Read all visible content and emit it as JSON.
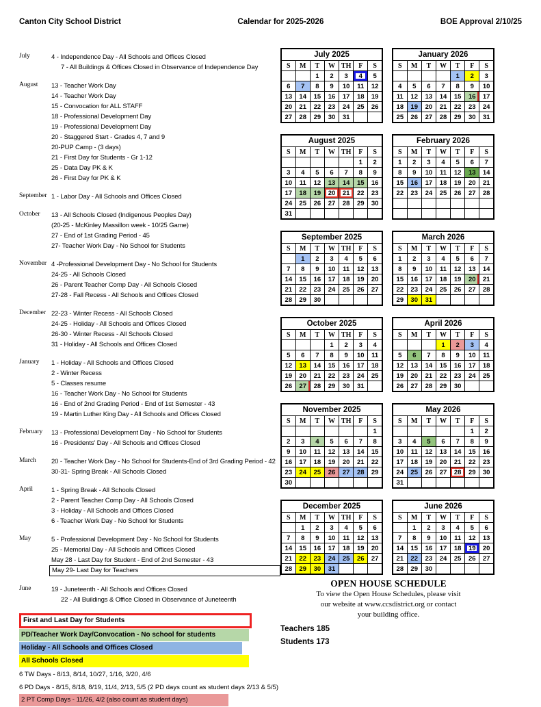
{
  "header": {
    "left": "Canton City School District",
    "center": "Calendar for 2025-2026",
    "right": "BOE Approval 2/10/25"
  },
  "events": [
    {
      "month": "July",
      "items": [
        {
          "text": "4 - Independence Day - All Schools and Offices Closed"
        },
        {
          "text": "7 - All Buildings & Offices Closed in Observance of Independence Day",
          "indent": true
        }
      ]
    },
    {
      "month": "August",
      "items": [
        "13 - Teacher Work Day",
        "14 - Teacher Work Day",
        "15 - Convocation for ALL STAFF",
        "18 - Professional Development Day",
        "19 - Professional Development Day",
        "20 - Staggered Start - Grades 4, 7 and 9",
        "20-PUP Camp - (3 days)",
        "21 - First Day for Students - Gr 1-12",
        "25 - Data Day PK & K",
        "26 - First Day for PK & K"
      ]
    },
    {
      "month": "September",
      "items": [
        "1 - Labor Day - All Schools and Offices Closed"
      ]
    },
    {
      "month": "October",
      "items": [
        "13 - All Schools Closed (Indigenous Peoples Day)",
        "(20-25 - McKinley Massillon week - 10/25 Game)",
        "27 -  End of 1st Grading Period  - 45",
        "27- Teacher Work Day - No School for Students"
      ]
    },
    {
      "month": "November",
      "items": [
        "4 -Professional Development Day - No School for Students",
        "24-25 - All Schools Closed",
        "26 - Parent Teacher Comp Day - All Schools Closed",
        "27-28 - Fall Recess - All Schools and Offices Closed"
      ]
    },
    {
      "month": "December",
      "items": [
        "22-23 - Winter Recess - All Schools Closed",
        "24-25 - Holiday - All Schools and Offices Closed",
        "26-30 - Winter Recess - All Schools Closed",
        "31 - Holiday - All Schools and Offices Closed"
      ]
    },
    {
      "month": "January",
      "items": [
        "1 - Holiday - All Schools and Offices Closed",
        "2 - Winter Recess",
        "5 - Classes resume",
        "16 - Teacher Work Day - No School for Students",
        "16 - End of 2nd Grading Period - End of 1st Semester  - 43",
        "19 - Martin Luther King Day - All Schools and Offices Closed"
      ]
    },
    {
      "month": "February",
      "items": [
        "13 - Professional Development Day - No School for Students",
        "16 - Presidents' Day - All Schools and Offices Closed"
      ]
    },
    {
      "month": "March",
      "items": [
        "20 - Teacher Work Day - No School for Students-End of 3rd Grading Period - 42",
        "30-31- Spring Break - All Schools Closed"
      ]
    },
    {
      "month": "April",
      "items": [
        "1 - Spring Break - All Schools Closed",
        "2 - Parent Teacher Comp Day - All Schools Closed",
        "3 - Holiday - All Schools and Offices Closed",
        "6 - Teacher Work Day - No School for Students"
      ]
    },
    {
      "month": "May",
      "items": [
        "5 - Professional Development Day - No School for Students",
        "25 - Memorial Day - All Schools and Offices Closed",
        "May  28 - Last Day for Student - End of 2nd Semester - 43",
        {
          "text": "May 29- Last Day for Teachers",
          "boxed": true
        }
      ]
    },
    {
      "month": "June",
      "items": [
        "19 - Juneteenth - All Schools and Offices Closed",
        {
          "text": "22 - All Buildings & Office Closed in Observance of Juneteenth",
          "indent": true
        }
      ]
    }
  ],
  "legend": [
    {
      "text": "First and Last Day for Students",
      "style": "lg-red-box"
    },
    {
      "text": "PD/Teacher Work Day/Convocation - No school for students",
      "style": "lg-green"
    },
    {
      "text": "Holiday - All Schools and Offices Closed",
      "style": "lg-blue"
    },
    {
      "text": "All Schools Closed",
      "style": "lg-yellow"
    },
    {
      "text": "6 TW Days - 8/13, 8/14, 10/27, 1/16, 3/20, 4/6",
      "style": "lg-plain"
    },
    {
      "text": "6 PD Days - 8/15, 8/18, 8/19, 11/4,  2/13, 5/5 (2 PD days count as student days 2/13 & 5/5)",
      "style": "lg-plain"
    },
    {
      "text": "2 PT Comp Days - 11/26, 4/2 (also count as student days)",
      "style": "lg-pink"
    }
  ],
  "calendars": [
    {
      "title": "July 2025",
      "dow": [
        "S",
        "M",
        "T",
        "W",
        "TH",
        "F",
        "S"
      ],
      "weeks": [
        [
          "",
          "",
          "1",
          "2",
          "3",
          "4",
          "5"
        ],
        [
          "6",
          "7",
          "8",
          "9",
          "10",
          "11",
          "12"
        ],
        [
          "13",
          "14",
          "15",
          "16",
          "17",
          "18",
          "19"
        ],
        [
          "20",
          "21",
          "22",
          "23",
          "24",
          "25",
          "26"
        ],
        [
          "27",
          "28",
          "29",
          "30",
          "31",
          "",
          ""
        ]
      ],
      "hl": {
        "4": "blue-box",
        "7": "blue"
      }
    },
    {
      "title": "January 2026",
      "dow": [
        "S",
        "M",
        "T",
        "W",
        "T",
        "F",
        "S"
      ],
      "weeks": [
        [
          "",
          "",
          "",
          "",
          "1",
          "2",
          "3"
        ],
        [
          "4",
          "5",
          "6",
          "7",
          "8",
          "9",
          "10"
        ],
        [
          "11",
          "12",
          "13",
          "14",
          "15",
          "16",
          "17"
        ],
        [
          "18",
          "19",
          "20",
          "21",
          "22",
          "23",
          "24"
        ],
        [
          "25",
          "26",
          "27",
          "28",
          "29",
          "30",
          "31"
        ]
      ],
      "hl": {
        "1": "blue",
        "2": "yellow",
        "16": "green-grading",
        "19": "blue"
      }
    },
    {
      "title": "August 2025",
      "dow": [
        "S",
        "M",
        "T",
        "W",
        "TH",
        "F",
        "S"
      ],
      "weeks": [
        [
          "",
          "",
          "",
          "",
          "",
          "1",
          "2"
        ],
        [
          "3",
          "4",
          "5",
          "6",
          "7",
          "8",
          "9"
        ],
        [
          "10",
          "11",
          "12",
          "13",
          "14",
          "15",
          "16"
        ],
        [
          "17",
          "18",
          "19",
          "20",
          "21",
          "22",
          "23"
        ],
        [
          "24",
          "25",
          "26",
          "27",
          "28",
          "29",
          "30"
        ],
        [
          "31",
          "",
          "",
          "",
          "",
          "",
          ""
        ]
      ],
      "hl": {
        "13": "green-light",
        "14": "green-light",
        "15": "green-light",
        "18": "green-light",
        "19": "green-light",
        "20": "red-box",
        "21": "red-box"
      }
    },
    {
      "title": "February 2026",
      "dow": [
        "S",
        "M",
        "T",
        "W",
        "T",
        "F",
        "S"
      ],
      "weeks": [
        [
          "1",
          "2",
          "3",
          "4",
          "5",
          "6",
          "7"
        ],
        [
          "8",
          "9",
          "10",
          "11",
          "12",
          "13",
          "14"
        ],
        [
          "15",
          "16",
          "17",
          "18",
          "19",
          "20",
          "21"
        ],
        [
          "22",
          "23",
          "24",
          "25",
          "26",
          "27",
          "28"
        ],
        [
          "",
          "",
          "",
          "",
          "",
          "",
          ""
        ],
        [
          "",
          "",
          "",
          "",
          "",
          "",
          ""
        ]
      ],
      "hl": {
        "13": "green-dark",
        "16": "blue"
      }
    },
    {
      "title": "September 2025",
      "dow": [
        "S",
        "M",
        "T",
        "W",
        "TH",
        "F",
        "S"
      ],
      "weeks": [
        [
          "",
          "1",
          "2",
          "3",
          "4",
          "5",
          "6"
        ],
        [
          "7",
          "8",
          "9",
          "10",
          "11",
          "12",
          "13"
        ],
        [
          "14",
          "15",
          "16",
          "17",
          "18",
          "19",
          "20"
        ],
        [
          "21",
          "22",
          "23",
          "24",
          "25",
          "26",
          "27"
        ],
        [
          "28",
          "29",
          "30",
          "",
          "",
          "",
          ""
        ]
      ],
      "hl": {
        "1": "blue"
      }
    },
    {
      "title": "March 2026",
      "dow": [
        "S",
        "M",
        "T",
        "W",
        "T",
        "F",
        "S"
      ],
      "weeks": [
        [
          "1",
          "2",
          "3",
          "4",
          "5",
          "6",
          "7"
        ],
        [
          "8",
          "9",
          "10",
          "11",
          "12",
          "13",
          "14"
        ],
        [
          "15",
          "16",
          "17",
          "18",
          "19",
          "20",
          "21"
        ],
        [
          "22",
          "23",
          "24",
          "25",
          "26",
          "27",
          "28"
        ],
        [
          "29",
          "30",
          "31",
          "",
          "",
          "",
          ""
        ]
      ],
      "hl": {
        "20": "green-grading",
        "30": "yellow",
        "31": "yellow"
      }
    },
    {
      "title": "October 2025",
      "dow": [
        "S",
        "M",
        "T",
        "W",
        "TH",
        "F",
        "S"
      ],
      "weeks": [
        [
          "",
          "",
          "",
          "1",
          "2",
          "3",
          "4"
        ],
        [
          "5",
          "6",
          "7",
          "8",
          "9",
          "10",
          "11"
        ],
        [
          "12",
          "13",
          "14",
          "15",
          "16",
          "17",
          "18"
        ],
        [
          "19",
          "20",
          "21",
          "22",
          "23",
          "24",
          "25"
        ],
        [
          "26",
          "27",
          "28",
          "29",
          "30",
          "31",
          ""
        ]
      ],
      "hl": {
        "13": "yellow",
        "27": "green-grading"
      }
    },
    {
      "title": "April 2026",
      "dow": [
        "S",
        "M",
        "T",
        "W",
        "T",
        "F",
        "S"
      ],
      "weeks": [
        [
          "",
          "",
          "",
          "1",
          "2",
          "3",
          "4"
        ],
        [
          "5",
          "6",
          "7",
          "8",
          "9",
          "10",
          "11"
        ],
        [
          "12",
          "13",
          "14",
          "15",
          "16",
          "17",
          "18"
        ],
        [
          "19",
          "20",
          "21",
          "22",
          "23",
          "24",
          "25"
        ],
        [
          "26",
          "27",
          "28",
          "29",
          "30",
          "",
          ""
        ]
      ],
      "hl": {
        "1": "yellow",
        "2": "pink",
        "3": "blue",
        "6": "green-mid"
      }
    },
    {
      "title": "November 2025",
      "dow": [
        "S",
        "M",
        "T",
        "W",
        "TH",
        "F",
        "S"
      ],
      "weeks": [
        [
          "",
          "",
          "",
          "",
          "",
          "",
          "1"
        ],
        [
          "2",
          "3",
          "4",
          "5",
          "6",
          "7",
          "8"
        ],
        [
          "9",
          "10",
          "11",
          "12",
          "13",
          "14",
          "15"
        ],
        [
          "16",
          "17",
          "18",
          "19",
          "20",
          "21",
          "22"
        ],
        [
          "23",
          "24",
          "25",
          "26",
          "27",
          "28",
          "29"
        ],
        [
          "30",
          "",
          "",
          "",
          "",
          "",
          ""
        ]
      ],
      "hl": {
        "4": "green-light",
        "24": "yellow",
        "25": "yellow",
        "26": "pink",
        "27": "blue",
        "28": "blue"
      }
    },
    {
      "title": "May 2026",
      "dow": [
        "S",
        "M",
        "T",
        "W",
        "T",
        "F",
        "S"
      ],
      "weeks": [
        [
          "",
          "",
          "",
          "",
          "",
          "1",
          "2"
        ],
        [
          "3",
          "4",
          "5",
          "6",
          "7",
          "8",
          "9"
        ],
        [
          "10",
          "11",
          "12",
          "13",
          "14",
          "15",
          "16"
        ],
        [
          "17",
          "18",
          "19",
          "20",
          "21",
          "22",
          "23"
        ],
        [
          "24",
          "25",
          "26",
          "27",
          "28",
          "29",
          "30"
        ],
        [
          "31",
          "",
          "",
          "",
          "",
          "",
          ""
        ]
      ],
      "hl": {
        "5": "green-mid",
        "25": "blue",
        "28": "red-box"
      }
    },
    {
      "title": "December 2025",
      "dow": [
        "S",
        "M",
        "T",
        "W",
        "TH",
        "F",
        "S"
      ],
      "weeks": [
        [
          "",
          "1",
          "2",
          "3",
          "4",
          "5",
          "6"
        ],
        [
          "7",
          "8",
          "9",
          "10",
          "11",
          "12",
          "13"
        ],
        [
          "14",
          "15",
          "16",
          "17",
          "18",
          "19",
          "20"
        ],
        [
          "21",
          "22",
          "23",
          "24",
          "25",
          "26",
          "27"
        ],
        [
          "28",
          "29",
          "30",
          "31",
          "",
          "",
          ""
        ]
      ],
      "hl": {
        "22": "yellow",
        "23": "yellow",
        "24": "blue",
        "25": "blue",
        "26": "yellow",
        "29": "yellow",
        "30": "yellow",
        "31": "blue"
      }
    },
    {
      "title": "June 2026",
      "dow": [
        "S",
        "M",
        "T",
        "W",
        "T",
        "F",
        "S"
      ],
      "weeks": [
        [
          "",
          "1",
          "2",
          "3",
          "4",
          "5",
          "6"
        ],
        [
          "7",
          "8",
          "9",
          "10",
          "11",
          "12",
          "13"
        ],
        [
          "14",
          "15",
          "16",
          "17",
          "18",
          "19",
          "20"
        ],
        [
          "21",
          "22",
          "23",
          "24",
          "25",
          "26",
          "27"
        ],
        [
          "28",
          "29",
          "30",
          "",
          "",
          "",
          ""
        ]
      ],
      "hl": {
        "19": "blue-box",
        "22": "blue"
      }
    }
  ],
  "open_house": {
    "title": "OPEN HOUSE SCHEDULE",
    "line1": "To view the Open House Schedules, please visit",
    "line2": "our website at www.ccsdistrict.org or contact",
    "line3": "your building office.",
    "teachers": "Teachers 185",
    "students": "Students 173"
  },
  "colors": {
    "all_schools_closed": "#ffff00",
    "holiday_fill": "#a4c2f4",
    "pd_teacher_day": "#b6d7a8",
    "pd_counts_as_student_day_mid": "#93c47d",
    "pd_counts_as_student_day_dark": "#6aa84f",
    "pt_comp_day": "#ea9999",
    "first_last_day_border": "#ee2222",
    "observed_holiday_border": "#1a1ae6",
    "grading_period_mark": "#cc2222",
    "legend_holiday_bar": "#8eb4e3"
  }
}
